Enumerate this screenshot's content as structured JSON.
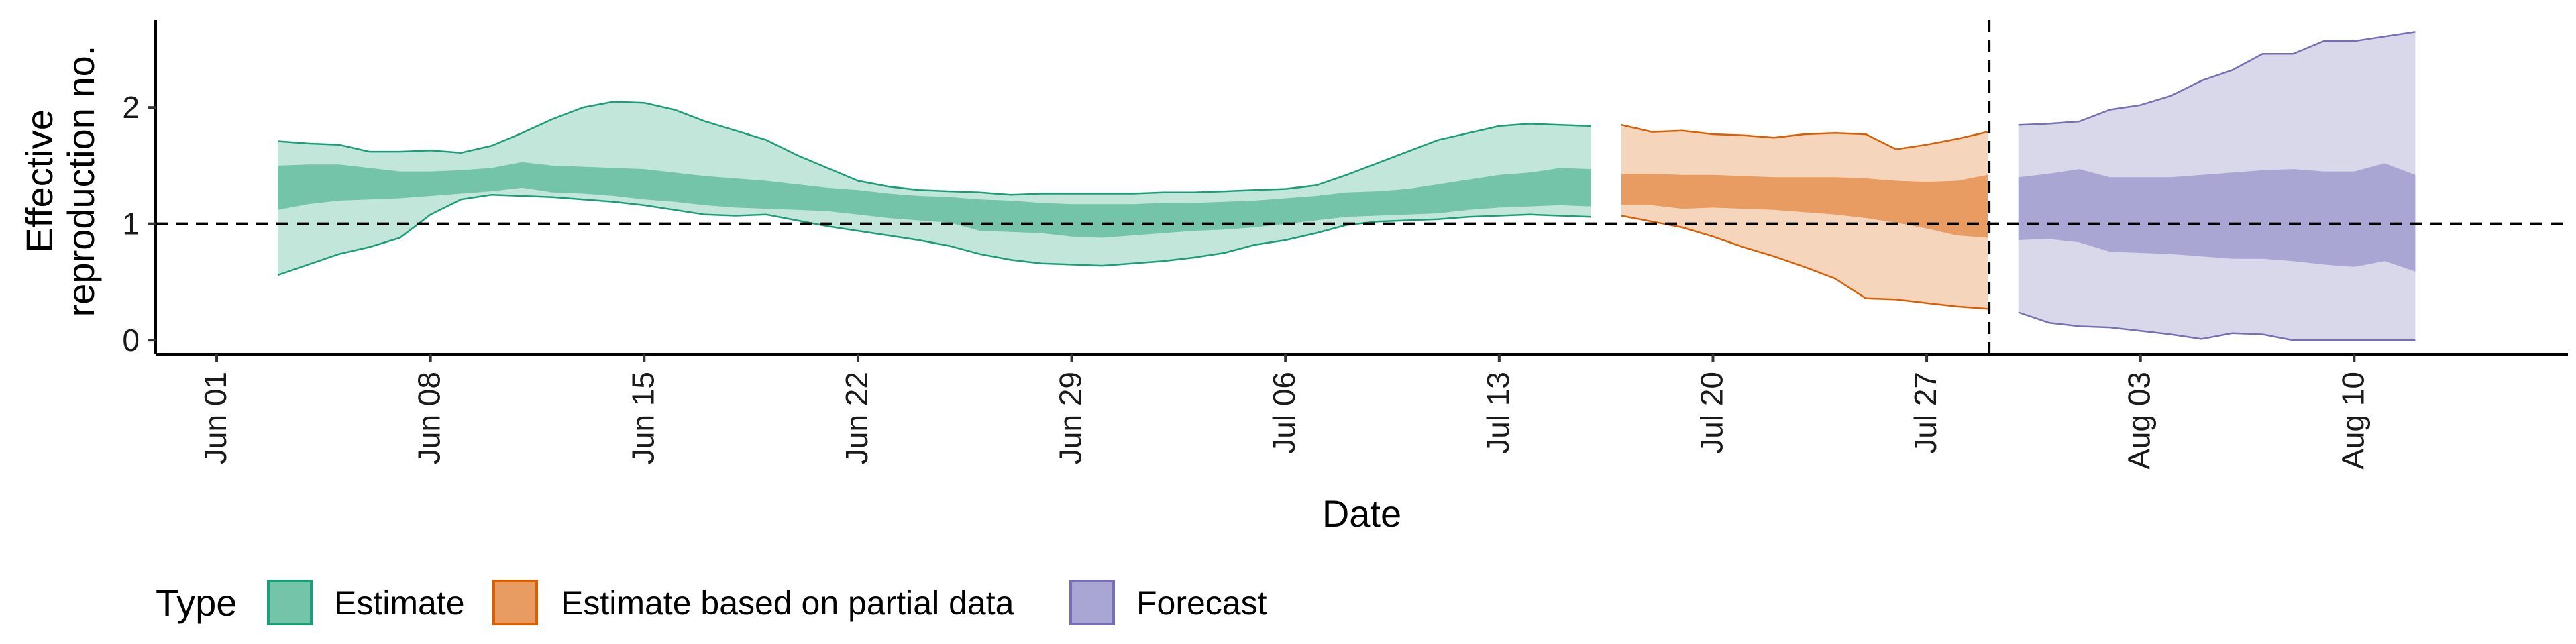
{
  "chart_data": {
    "type": "area",
    "xlabel": "Date",
    "ylabel_lines": [
      "Effective",
      "reproduction no."
    ],
    "ylim": [
      -0.12,
      2.75
    ],
    "xlim": [
      "2020-05-30",
      "2020-08-17"
    ],
    "y_ticks": [
      0,
      1,
      2
    ],
    "x_ticks": [
      "2020-06-01",
      "2020-06-08",
      "2020-06-15",
      "2020-06-22",
      "2020-06-29",
      "2020-07-06",
      "2020-07-13",
      "2020-07-20",
      "2020-07-27",
      "2020-08-03",
      "2020-08-10"
    ],
    "x_tick_labels": [
      "Jun 01",
      "Jun 08",
      "Jun 15",
      "Jun 22",
      "Jun 29",
      "Jul 06",
      "Jul 13",
      "Jul 20",
      "Jul 27",
      "Aug 03",
      "Aug 10"
    ],
    "reference_line": 1,
    "forecast_date": "2020-07-29",
    "grid": false,
    "legend": {
      "title": "Type",
      "position": "bottom-left",
      "items": [
        {
          "label": "Estimate",
          "key": "estimate"
        },
        {
          "label": "Estimate based on partial data",
          "key": "partial"
        },
        {
          "label": "Forecast",
          "key": "forecast"
        }
      ]
    },
    "colors": {
      "estimate": {
        "line": "#1b9e77",
        "outer": "#c3e6da",
        "inner": "#74c4a9"
      },
      "partial": {
        "line": "#d95f02",
        "outer": "#f6d5bd",
        "inner": "#e89c61"
      },
      "forecast": {
        "line": "#7570b3",
        "outer": "#d9d8ea",
        "inner": "#aaa6d3"
      }
    },
    "series": [
      {
        "key": "estimate",
        "x": [
          "2020-06-03",
          "2020-06-04",
          "2020-06-05",
          "2020-06-06",
          "2020-06-07",
          "2020-06-08",
          "2020-06-09",
          "2020-06-10",
          "2020-06-11",
          "2020-06-12",
          "2020-06-13",
          "2020-06-14",
          "2020-06-15",
          "2020-06-16",
          "2020-06-17",
          "2020-06-18",
          "2020-06-19",
          "2020-06-20",
          "2020-06-21",
          "2020-06-22",
          "2020-06-23",
          "2020-06-24",
          "2020-06-25",
          "2020-06-26",
          "2020-06-27",
          "2020-06-28",
          "2020-06-29",
          "2020-06-30",
          "2020-07-01",
          "2020-07-02",
          "2020-07-03",
          "2020-07-04",
          "2020-07-05",
          "2020-07-06",
          "2020-07-07",
          "2020-07-08",
          "2020-07-09",
          "2020-07-10",
          "2020-07-11",
          "2020-07-12",
          "2020-07-13",
          "2020-07-14",
          "2020-07-15",
          "2020-07-16"
        ],
        "outer_upper": [
          1.71,
          1.69,
          1.68,
          1.62,
          1.62,
          1.63,
          1.61,
          1.67,
          1.78,
          1.9,
          2.0,
          2.05,
          2.04,
          1.98,
          1.88,
          1.8,
          1.72,
          1.59,
          1.48,
          1.37,
          1.32,
          1.29,
          1.28,
          1.27,
          1.25,
          1.26,
          1.26,
          1.26,
          1.26,
          1.27,
          1.27,
          1.28,
          1.29,
          1.3,
          1.33,
          1.42,
          1.52,
          1.62,
          1.72,
          1.78,
          1.84,
          1.86,
          1.85,
          1.84
        ],
        "inner_upper": [
          1.5,
          1.51,
          1.51,
          1.48,
          1.45,
          1.45,
          1.46,
          1.48,
          1.53,
          1.5,
          1.49,
          1.48,
          1.47,
          1.44,
          1.41,
          1.39,
          1.37,
          1.34,
          1.31,
          1.29,
          1.26,
          1.24,
          1.23,
          1.21,
          1.2,
          1.18,
          1.17,
          1.17,
          1.17,
          1.18,
          1.18,
          1.19,
          1.2,
          1.22,
          1.24,
          1.27,
          1.28,
          1.3,
          1.34,
          1.38,
          1.42,
          1.44,
          1.48,
          1.47
        ],
        "inner_lower": [
          1.12,
          1.17,
          1.2,
          1.21,
          1.22,
          1.24,
          1.26,
          1.28,
          1.31,
          1.27,
          1.26,
          1.24,
          1.21,
          1.19,
          1.16,
          1.14,
          1.13,
          1.12,
          1.11,
          1.08,
          1.05,
          1.03,
          1.01,
          0.94,
          0.93,
          0.92,
          0.89,
          0.88,
          0.9,
          0.92,
          0.94,
          0.95,
          0.97,
          1.0,
          1.03,
          1.06,
          1.07,
          1.08,
          1.09,
          1.12,
          1.14,
          1.15,
          1.16,
          1.15
        ],
        "outer_lower": [
          0.56,
          0.65,
          0.74,
          0.8,
          0.88,
          1.08,
          1.21,
          1.25,
          1.24,
          1.23,
          1.21,
          1.19,
          1.16,
          1.12,
          1.08,
          1.07,
          1.08,
          1.03,
          0.98,
          0.94,
          0.9,
          0.86,
          0.81,
          0.74,
          0.69,
          0.66,
          0.65,
          0.64,
          0.66,
          0.68,
          0.71,
          0.75,
          0.82,
          0.86,
          0.92,
          0.99,
          1.02,
          1.03,
          1.04,
          1.06,
          1.07,
          1.08,
          1.07,
          1.06
        ]
      },
      {
        "key": "partial",
        "x": [
          "2020-07-17",
          "2020-07-18",
          "2020-07-19",
          "2020-07-20",
          "2020-07-21",
          "2020-07-22",
          "2020-07-23",
          "2020-07-24",
          "2020-07-25",
          "2020-07-26",
          "2020-07-27",
          "2020-07-28",
          "2020-07-29"
        ],
        "outer_upper": [
          1.85,
          1.79,
          1.8,
          1.77,
          1.76,
          1.74,
          1.77,
          1.78,
          1.77,
          1.64,
          1.68,
          1.73,
          1.79
        ],
        "inner_upper": [
          1.43,
          1.43,
          1.42,
          1.42,
          1.41,
          1.4,
          1.4,
          1.4,
          1.39,
          1.37,
          1.36,
          1.37,
          1.42
        ],
        "inner_lower": [
          1.16,
          1.16,
          1.13,
          1.14,
          1.13,
          1.12,
          1.1,
          1.08,
          1.05,
          1.01,
          0.96,
          0.9,
          0.88
        ],
        "outer_lower": [
          1.07,
          1.02,
          0.97,
          0.89,
          0.8,
          0.72,
          0.63,
          0.53,
          0.36,
          0.35,
          0.32,
          0.29,
          0.27
        ]
      },
      {
        "key": "forecast",
        "x": [
          "2020-07-30",
          "2020-07-31",
          "2020-08-01",
          "2020-08-02",
          "2020-08-03",
          "2020-08-04",
          "2020-08-05",
          "2020-08-06",
          "2020-08-07",
          "2020-08-08",
          "2020-08-09",
          "2020-08-10",
          "2020-08-11",
          "2020-08-12"
        ],
        "outer_upper": [
          1.85,
          1.86,
          1.88,
          1.98,
          2.02,
          2.1,
          2.23,
          2.32,
          2.46,
          2.46,
          2.57,
          2.57,
          2.61,
          2.65
        ],
        "inner_upper": [
          1.4,
          1.43,
          1.47,
          1.4,
          1.4,
          1.4,
          1.42,
          1.44,
          1.46,
          1.47,
          1.45,
          1.45,
          1.52,
          1.42
        ],
        "inner_lower": [
          0.86,
          0.87,
          0.84,
          0.76,
          0.75,
          0.74,
          0.72,
          0.7,
          0.7,
          0.68,
          0.65,
          0.63,
          0.68,
          0.59
        ],
        "outer_lower": [
          0.24,
          0.15,
          0.12,
          0.11,
          0.08,
          0.05,
          0.01,
          0.06,
          0.05,
          0.0,
          0.0,
          0.0,
          0.0,
          0.0
        ]
      }
    ]
  }
}
